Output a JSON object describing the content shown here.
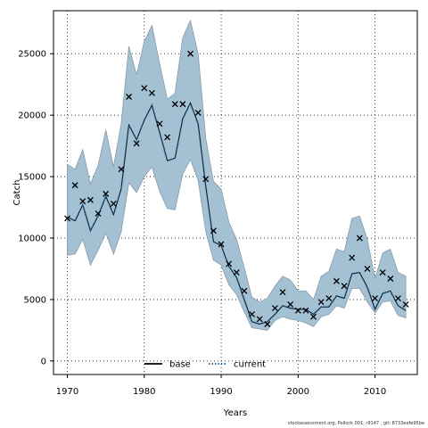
{
  "chart_data": {
    "type": "line",
    "xlabel": "Years",
    "ylabel": "Catch",
    "xlim": [
      1968.2,
      2015.5
    ],
    "ylim": [
      -1100,
      28500
    ],
    "xticks": [
      1970,
      1980,
      1990,
      2000,
      2010
    ],
    "yticks": [
      0,
      5000,
      10000,
      15000,
      20000,
      25000
    ],
    "grid": true,
    "legend_position": "bottom-center",
    "band_color": "#a3c1d3",
    "band_edge_color": "#8a9aa8",
    "x": [
      1970,
      1971,
      1972,
      1973,
      1974,
      1975,
      1976,
      1977,
      1978,
      1979,
      1980,
      1981,
      1982,
      1983,
      1984,
      1985,
      1986,
      1987,
      1988,
      1989,
      1990,
      1991,
      1992,
      1993,
      1994,
      1995,
      1996,
      1997,
      1998,
      1999,
      2000,
      2001,
      2002,
      2003,
      2004,
      2005,
      2006,
      2007,
      2008,
      2009,
      2010,
      2011,
      2012,
      2013,
      2014
    ],
    "observed": [
      11600,
      14300,
      13000,
      13100,
      12000,
      13600,
      12800,
      15600,
      21500,
      17700,
      22200,
      21800,
      19300,
      18200,
      20900,
      20900,
      25000,
      20200,
      14800,
      10600,
      9500,
      7900,
      7200,
      5700,
      3800,
      3400,
      3000,
      4300,
      5600,
      4600,
      4100,
      4100,
      3600,
      4800,
      5100,
      6500,
      6100,
      8400,
      10000,
      7500,
      5100,
      7200,
      6700,
      5100,
      4600
    ],
    "fit": [
      11700,
      11400,
      12700,
      10600,
      11800,
      13400,
      11900,
      14000,
      19200,
      18000,
      19600,
      20800,
      18600,
      16300,
      16500,
      19700,
      21000,
      19300,
      14200,
      9700,
      9400,
      7700,
      6800,
      5000,
      3200,
      3000,
      3200,
      3800,
      4500,
      4300,
      4200,
      4200,
      3800,
      4400,
      4400,
      5300,
      5100,
      7100,
      7200,
      6000,
      4200,
      5500,
      5700,
      4500,
      4100
    ],
    "lower": [
      8600,
      8700,
      9900,
      7800,
      9000,
      10400,
      8700,
      10500,
      14500,
      13700,
      15000,
      15800,
      13800,
      12400,
      12300,
      15200,
      16400,
      14700,
      10500,
      8200,
      7800,
      6200,
      5400,
      4000,
      2700,
      2600,
      2500,
      3300,
      3600,
      3400,
      3300,
      3100,
      2800,
      3600,
      3800,
      4500,
      4300,
      5900,
      5900,
      4800,
      3900,
      4800,
      4900,
      3700,
      3500
    ],
    "upper": [
      16000,
      15600,
      17200,
      14400,
      15900,
      18800,
      15800,
      19300,
      25600,
      23300,
      26000,
      27300,
      24200,
      21300,
      21800,
      26300,
      27700,
      25000,
      18100,
      14600,
      14000,
      11300,
      9900,
      7600,
      5200,
      4800,
      5100,
      6100,
      6900,
      6600,
      5700,
      5700,
      5000,
      6900,
      7300,
      9100,
      8900,
      11600,
      11800,
      9900,
      6700,
      8800,
      9100,
      7200,
      6900
    ],
    "legend": [
      {
        "label": "base",
        "style": "solid",
        "color": "#000000"
      },
      {
        "label": "current",
        "style": "dotted",
        "color": "#000000"
      }
    ]
  },
  "footer": "stockassessment.org, Pollock  001, r9147 , git: 8733eefe95be"
}
